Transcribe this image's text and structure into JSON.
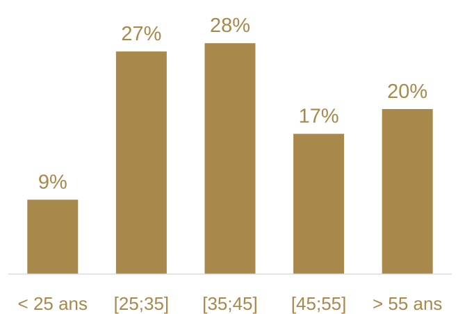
{
  "chart_data": {
    "type": "bar",
    "categories": [
      "< 25 ans",
      "[25;35]",
      "[35;45]",
      "[45;55]",
      "> 55 ans"
    ],
    "values": [
      9,
      27,
      28,
      17,
      20
    ],
    "value_labels": [
      "9%",
      "27%",
      "28%",
      "17%",
      "20%"
    ],
    "title": "",
    "xlabel": "",
    "ylabel": "",
    "ylim": [
      0,
      30
    ],
    "grid": false,
    "legend": "none"
  },
  "colors": {
    "bar": "#A8884B",
    "label": "#A8884B",
    "tick": "#A8884B",
    "axis": "#D9D9D9"
  }
}
